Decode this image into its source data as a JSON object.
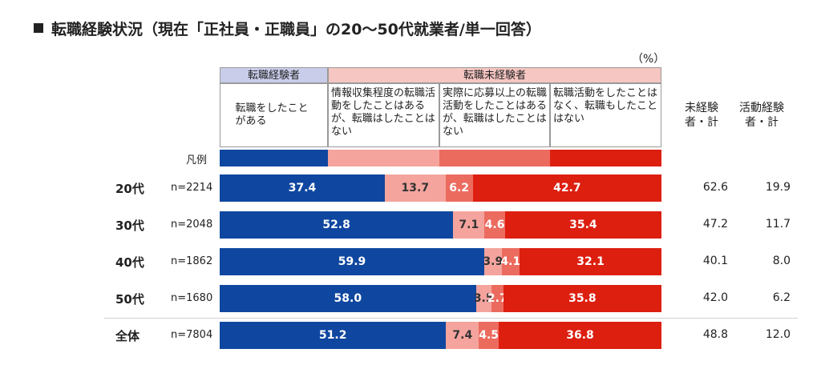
{
  "title": "転職経験状況（現在「正社員・正職員」の20～50代就業者/単一回答）",
  "unit": "（%）",
  "groups": {
    "experienced": "転職経験者",
    "not_experienced": "転職未経験者"
  },
  "categories": [
    "転職をしたことがある",
    "情報収集程度の転職活動をしたことはあるが、転職はしたことはない",
    "実際に応募以上の転職活動をしたことはあるが、転職はしたことはない",
    "転職活動をしたことはなく、転職もしたことはない"
  ],
  "summary_headers": [
    "未経験者・計",
    "活動経験者・計"
  ],
  "legend_label": "凡例",
  "colors": [
    "#0f47a0",
    "#f4a49d",
    "#ec6b5f",
    "#dd1f10"
  ],
  "label_colors": [
    "#ffffff",
    "#333333",
    "#ffffff",
    "#ffffff"
  ],
  "chart_data": {
    "type": "bar",
    "orientation": "horizontal",
    "stacked": true,
    "xlim": [
      0,
      100
    ],
    "rows": [
      {
        "label": "20代",
        "n": "n=2214",
        "values": [
          37.4,
          13.7,
          6.2,
          42.7
        ],
        "value_labels": [
          "37.4",
          "13.7",
          "6.2",
          "42.7"
        ],
        "summary": [
          "62.6",
          "19.9"
        ]
      },
      {
        "label": "30代",
        "n": "n=2048",
        "values": [
          52.8,
          7.1,
          4.6,
          35.4
        ],
        "value_labels": [
          "52.8",
          "7.1",
          "4.6",
          "35.4"
        ],
        "summary": [
          "47.2",
          "11.7"
        ]
      },
      {
        "label": "40代",
        "n": "n=1862",
        "values": [
          59.9,
          3.9,
          4.1,
          32.1
        ],
        "value_labels": [
          "59.9",
          "3.9",
          "4.1",
          "32.1"
        ],
        "summary": [
          "40.1",
          "8.0"
        ]
      },
      {
        "label": "50代",
        "n": "n=1680",
        "values": [
          58.0,
          3.5,
          2.7,
          35.8
        ],
        "value_labels": [
          "58.0",
          "3.5",
          "2.7",
          "35.8"
        ],
        "summary": [
          "42.0",
          "6.2"
        ]
      },
      {
        "label": "全体",
        "n": "n=7804",
        "values": [
          51.2,
          7.4,
          4.5,
          36.8
        ],
        "value_labels": [
          "51.2",
          "7.4",
          "4.5",
          "36.8"
        ],
        "summary": [
          "48.8",
          "12.0"
        ]
      }
    ]
  }
}
